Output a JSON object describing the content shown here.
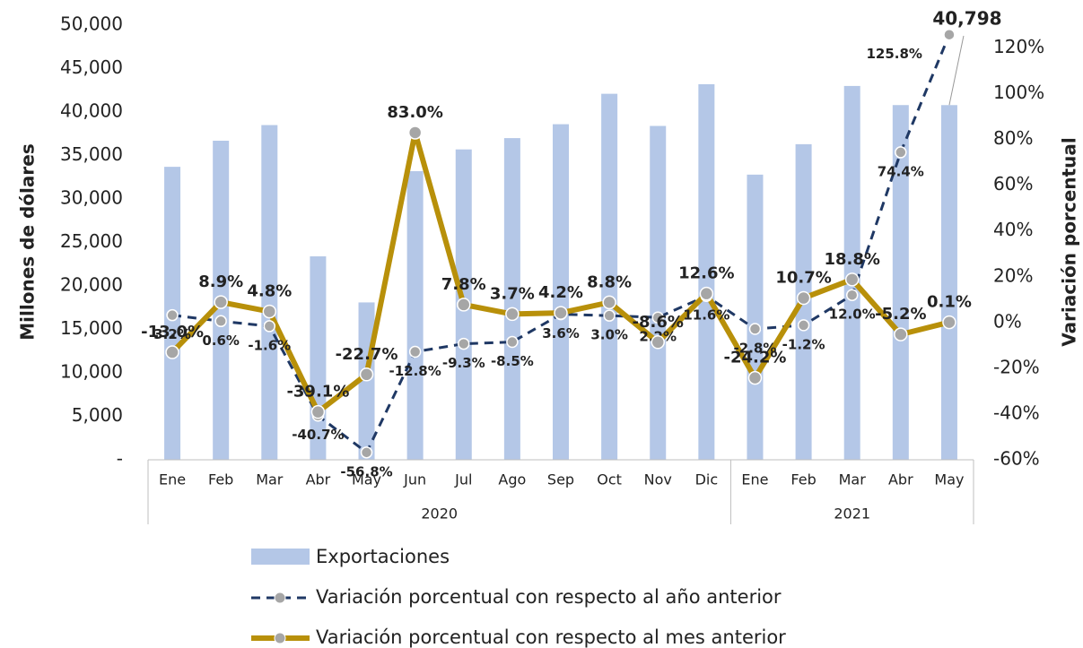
{
  "chart_data": {
    "type": "bar_line",
    "ylabel": "Millones de dólares",
    "y2label": "Variación porcentual",
    "groups": [
      {
        "label": "2020",
        "months": [
          "Ene",
          "Feb",
          "Mar",
          "Abr",
          "May",
          "Jun",
          "Jul",
          "Ago",
          "Sep",
          "Oct",
          "Nov",
          "Dic"
        ]
      },
      {
        "label": "2021",
        "months": [
          "Ene",
          "Feb",
          "Mar",
          "Abr",
          "May"
        ]
      }
    ],
    "ylim": [
      0,
      50000
    ],
    "yticks": [
      {
        "value": 0,
        "label": "-"
      },
      {
        "value": 5000,
        "label": "5,000"
      },
      {
        "value": 10000,
        "label": "10,000"
      },
      {
        "value": 15000,
        "label": "15,000"
      },
      {
        "value": 20000,
        "label": "20,000"
      },
      {
        "value": 25000,
        "label": "25,000"
      },
      {
        "value": 30000,
        "label": "30,000"
      },
      {
        "value": 35000,
        "label": "35,000"
      },
      {
        "value": 40000,
        "label": "40,000"
      },
      {
        "value": 45000,
        "label": "45,000"
      },
      {
        "value": 50000,
        "label": "50,000"
      }
    ],
    "y2lim": [
      -60,
      130
    ],
    "y2ticks": [
      {
        "value": -60,
        "label": "-60%"
      },
      {
        "value": -40,
        "label": "-40%"
      },
      {
        "value": -20,
        "label": "-20%"
      },
      {
        "value": 0,
        "label": "0%"
      },
      {
        "value": 20,
        "label": "20%"
      },
      {
        "value": 40,
        "label": "40%"
      },
      {
        "value": 60,
        "label": "60%"
      },
      {
        "value": 80,
        "label": "80%"
      },
      {
        "value": 100,
        "label": "100%"
      },
      {
        "value": 120,
        "label": "120%"
      }
    ],
    "series": [
      {
        "name": "Exportaciones",
        "type": "bar",
        "color": "#b4c7e7",
        "values": [
          33700,
          36700,
          38500,
          23400,
          18100,
          33200,
          35700,
          37000,
          38600,
          42100,
          38400,
          43200,
          32800,
          36300,
          43000,
          40800,
          40798
        ],
        "value_labels": [
          null,
          null,
          null,
          null,
          null,
          null,
          null,
          null,
          null,
          null,
          null,
          null,
          null,
          null,
          null,
          null,
          "40,798"
        ]
      },
      {
        "name": "Variación porcentual con respecto al año anterior",
        "type": "line",
        "axis": "y2",
        "color": "#1f3864",
        "dashed": true,
        "values": [
          3.2,
          0.6,
          -1.6,
          -40.7,
          -56.8,
          -12.8,
          -9.3,
          -8.5,
          3.6,
          3.0,
          2.2,
          11.6,
          -2.8,
          -1.2,
          12.0,
          74.4,
          125.8
        ],
        "value_labels": [
          "3.2%",
          "0.6%",
          "-1.6%",
          "-40.7%",
          "-56.8%",
          "-12.8%",
          "-9.3%",
          "-8.5%",
          "3.6%",
          "3.0%",
          "2.2%",
          "11.6%",
          "-2.8%",
          "-1.2%",
          "12.0%",
          "74.4%",
          "125.8%"
        ]
      },
      {
        "name": "Variación porcentual con respecto al mes anterior",
        "type": "line",
        "axis": "y2",
        "color": "#b8900a",
        "dashed": false,
        "values": [
          -13.0,
          8.9,
          4.8,
          -39.1,
          -22.7,
          83.0,
          7.8,
          3.7,
          4.2,
          8.8,
          -8.6,
          12.6,
          -24.2,
          10.7,
          18.8,
          -5.2,
          0.1
        ],
        "value_labels": [
          "-13.0%",
          "8.9%",
          "4.8%",
          "-39.1%",
          "-22.7%",
          "83.0%",
          "7.8%",
          "3.7%",
          "4.2%",
          "8.8%",
          "-8.6%",
          "12.6%",
          "-24.2%",
          "10.7%",
          "18.8%",
          "-5.2%",
          "0.1%"
        ]
      }
    ]
  }
}
